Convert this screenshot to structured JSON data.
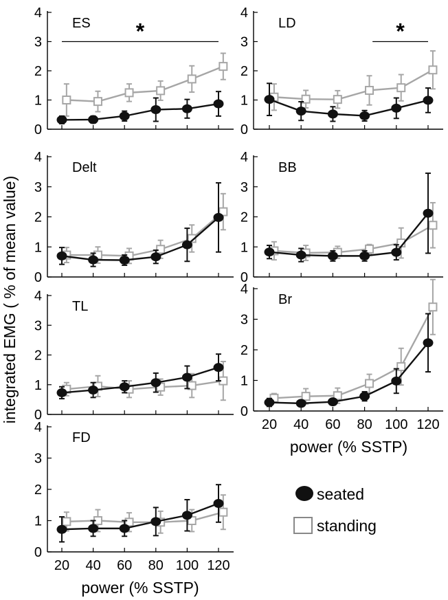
{
  "figure": {
    "ylabel": "integrated EMG ( % of mean value)",
    "xlabel": "power (% SSTP)"
  },
  "legend": {
    "seated": "seated",
    "standing": "standing"
  },
  "colors": {
    "seated": "#111111",
    "standing": "#a6a6a6"
  },
  "chart_data": [
    {
      "type": "line",
      "title": "ES",
      "x_ticks": [
        20,
        40,
        60,
        80,
        100,
        120
      ],
      "y_ticks": [
        0,
        1,
        2,
        3,
        4
      ],
      "ylim": [
        0,
        4
      ],
      "show_x_tick_labels": false,
      "significance": "*",
      "series": [
        {
          "name": "seated",
          "x": [
            20,
            40,
            60,
            80,
            100,
            120
          ],
          "y": [
            0.32,
            0.33,
            0.45,
            0.67,
            0.7,
            0.87
          ],
          "err": [
            0.13,
            0.12,
            0.17,
            0.4,
            0.32,
            0.42
          ]
        },
        {
          "name": "standing",
          "x": [
            23,
            43,
            63,
            83,
            103,
            123
          ],
          "y": [
            1.0,
            0.95,
            1.25,
            1.32,
            1.72,
            2.15
          ],
          "err": [
            0.55,
            0.35,
            0.3,
            0.33,
            0.45,
            0.45
          ]
        }
      ]
    },
    {
      "type": "line",
      "title": "LD",
      "x_ticks": [
        20,
        40,
        60,
        80,
        100,
        120
      ],
      "y_ticks": [
        0,
        1,
        2,
        3,
        4
      ],
      "ylim": [
        0,
        4
      ],
      "show_x_tick_labels": false,
      "significance": "*",
      "series": [
        {
          "name": "seated",
          "x": [
            20,
            40,
            60,
            80,
            100,
            120
          ],
          "y": [
            1.02,
            0.62,
            0.52,
            0.46,
            0.72,
            0.99
          ],
          "err": [
            0.55,
            0.32,
            0.25,
            0.18,
            0.35,
            0.42
          ]
        },
        {
          "name": "standing",
          "x": [
            23,
            43,
            63,
            83,
            103,
            123
          ],
          "y": [
            1.1,
            1.03,
            1.02,
            1.33,
            1.42,
            2.03
          ],
          "err": [
            0.45,
            0.3,
            0.3,
            0.5,
            0.45,
            0.65
          ]
        }
      ]
    },
    {
      "type": "line",
      "title": "Delt",
      "x_ticks": [
        20,
        40,
        60,
        80,
        100,
        120
      ],
      "y_ticks": [
        0,
        1,
        2,
        3,
        4
      ],
      "ylim": [
        0,
        4
      ],
      "show_x_tick_labels": false,
      "significance": "",
      "series": [
        {
          "name": "seated",
          "x": [
            20,
            40,
            60,
            80,
            100,
            120
          ],
          "y": [
            0.7,
            0.57,
            0.56,
            0.67,
            1.07,
            1.98
          ],
          "err": [
            0.28,
            0.22,
            0.17,
            0.22,
            0.55,
            1.15
          ]
        },
        {
          "name": "standing",
          "x": [
            23,
            43,
            63,
            83,
            103,
            123
          ],
          "y": [
            0.73,
            0.73,
            0.7,
            0.92,
            1.28,
            2.17
          ],
          "err": [
            0.25,
            0.27,
            0.25,
            0.3,
            0.45,
            0.6
          ]
        }
      ]
    },
    {
      "type": "line",
      "title": "BB",
      "x_ticks": [
        20,
        40,
        60,
        80,
        100,
        120
      ],
      "y_ticks": [
        0,
        1,
        2,
        3,
        4
      ],
      "ylim": [
        0,
        4
      ],
      "show_x_tick_labels": false,
      "significance": "",
      "series": [
        {
          "name": "seated",
          "x": [
            20,
            40,
            60,
            80,
            100,
            120
          ],
          "y": [
            0.83,
            0.73,
            0.7,
            0.7,
            0.82,
            2.12
          ],
          "err": [
            0.22,
            0.22,
            0.17,
            0.17,
            0.25,
            1.33
          ]
        },
        {
          "name": "standing",
          "x": [
            23,
            43,
            63,
            83,
            103,
            123
          ],
          "y": [
            0.87,
            0.8,
            0.82,
            0.93,
            1.13,
            1.72
          ],
          "err": [
            0.3,
            0.25,
            0.2,
            0.15,
            0.5,
            0.75
          ]
        }
      ]
    },
    {
      "type": "line",
      "title": "TL",
      "x_ticks": [
        20,
        40,
        60,
        80,
        100,
        120
      ],
      "y_ticks": [
        0,
        1,
        2,
        3,
        4
      ],
      "ylim": [
        0,
        4
      ],
      "show_x_tick_labels": false,
      "significance": "",
      "series": [
        {
          "name": "seated",
          "x": [
            20,
            40,
            60,
            80,
            100,
            120
          ],
          "y": [
            0.73,
            0.82,
            0.93,
            1.07,
            1.25,
            1.58
          ],
          "err": [
            0.2,
            0.25,
            0.2,
            0.32,
            0.38,
            0.45
          ]
        },
        {
          "name": "standing",
          "x": [
            23,
            43,
            63,
            83,
            103,
            123
          ],
          "y": [
            0.85,
            0.95,
            0.85,
            0.92,
            0.97,
            1.13
          ],
          "err": [
            0.22,
            0.35,
            0.28,
            0.27,
            0.4,
            0.65
          ]
        }
      ]
    },
    {
      "type": "line",
      "title": "Br",
      "x_ticks": [
        20,
        40,
        60,
        80,
        100,
        120
      ],
      "y_ticks": [
        0,
        1,
        2,
        3,
        4
      ],
      "ylim": [
        0,
        4
      ],
      "show_x_tick_labels": true,
      "xlabel": "power (% SSTP)",
      "significance": "",
      "series": [
        {
          "name": "seated",
          "x": [
            20,
            40,
            60,
            80,
            100,
            120
          ],
          "y": [
            0.28,
            0.25,
            0.3,
            0.48,
            0.98,
            2.23
          ],
          "err": [
            0.13,
            0.1,
            0.1,
            0.15,
            0.4,
            0.95
          ]
        },
        {
          "name": "standing",
          "x": [
            23,
            43,
            63,
            83,
            103,
            123
          ],
          "y": [
            0.42,
            0.48,
            0.5,
            0.9,
            1.45,
            3.4
          ],
          "err": [
            0.15,
            0.25,
            0.25,
            0.3,
            0.6,
            0.9
          ]
        }
      ]
    },
    {
      "type": "line",
      "title": "FD",
      "x_ticks": [
        20,
        40,
        60,
        80,
        100,
        120
      ],
      "y_ticks": [
        0,
        1,
        2,
        3,
        4
      ],
      "ylim": [
        0,
        4
      ],
      "show_x_tick_labels": true,
      "xlabel": "power (% SSTP)",
      "significance": "",
      "series": [
        {
          "name": "seated",
          "x": [
            20,
            40,
            60,
            80,
            100,
            120
          ],
          "y": [
            0.72,
            0.75,
            0.75,
            0.97,
            1.17,
            1.55
          ],
          "err": [
            0.4,
            0.25,
            0.25,
            0.45,
            0.5,
            0.6
          ]
        },
        {
          "name": "standing",
          "x": [
            23,
            43,
            63,
            83,
            103,
            123
          ],
          "y": [
            0.97,
            1.0,
            0.95,
            0.95,
            1.0,
            1.27
          ],
          "err": [
            0.3,
            0.35,
            0.3,
            0.35,
            0.35,
            0.55
          ]
        }
      ]
    }
  ]
}
